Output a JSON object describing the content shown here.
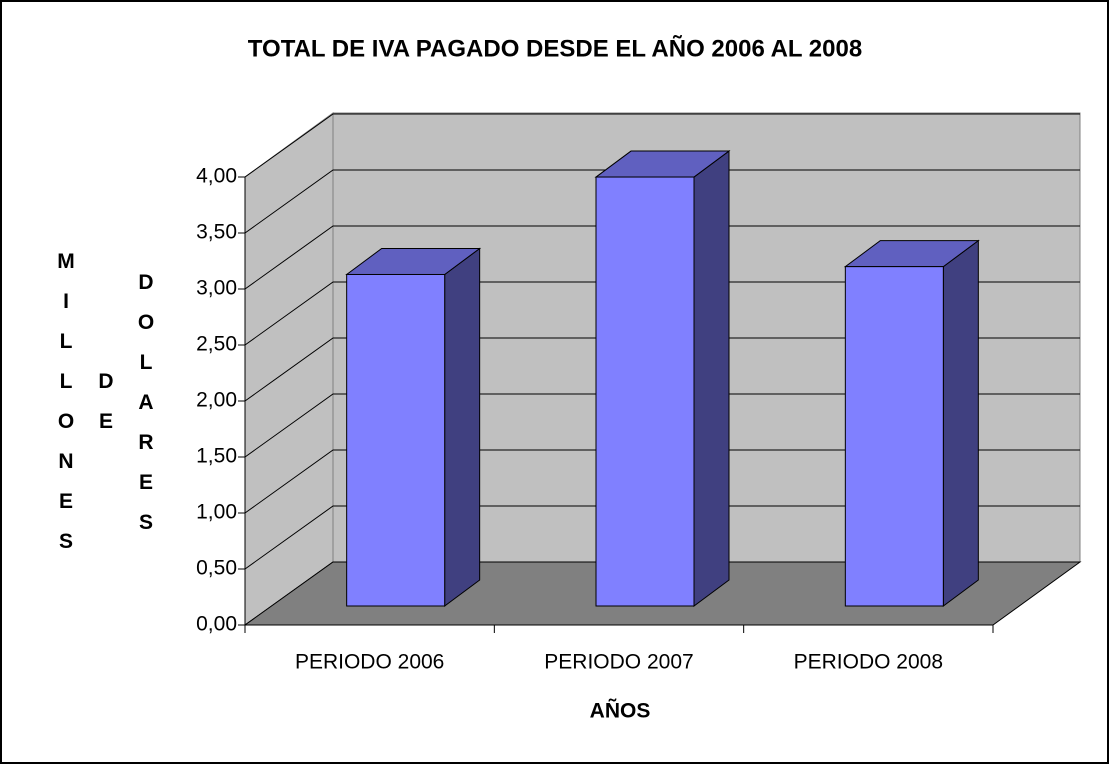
{
  "chart_data": {
    "type": "bar3d",
    "title": "TOTAL DE IVA PAGADO DESDE EL AÑO 2006 AL 2008",
    "x_label": "AÑOS",
    "y_label": [
      "MILLONES",
      "DE",
      "DOLARES"
    ],
    "categories": [
      "PERIODO 2006",
      "PERIODO 2007",
      "PERIODO 2008"
    ],
    "values": [
      2.96,
      3.83,
      3.03
    ],
    "color": "#8080ff",
    "ylim": [
      0,
      4
    ],
    "yticks": [
      {
        "value": 0,
        "label": "0,00"
      },
      {
        "value": 0.5,
        "label": "0,50"
      },
      {
        "value": 1,
        "label": "1,00"
      },
      {
        "value": 1.5,
        "label": "1,50"
      },
      {
        "value": 2,
        "label": "2,00"
      },
      {
        "value": 2.5,
        "label": "2,50"
      },
      {
        "value": 3,
        "label": "3,00"
      },
      {
        "value": 3.5,
        "label": "3,50"
      },
      {
        "value": 4,
        "label": "4,00"
      }
    ],
    "grid": true
  }
}
